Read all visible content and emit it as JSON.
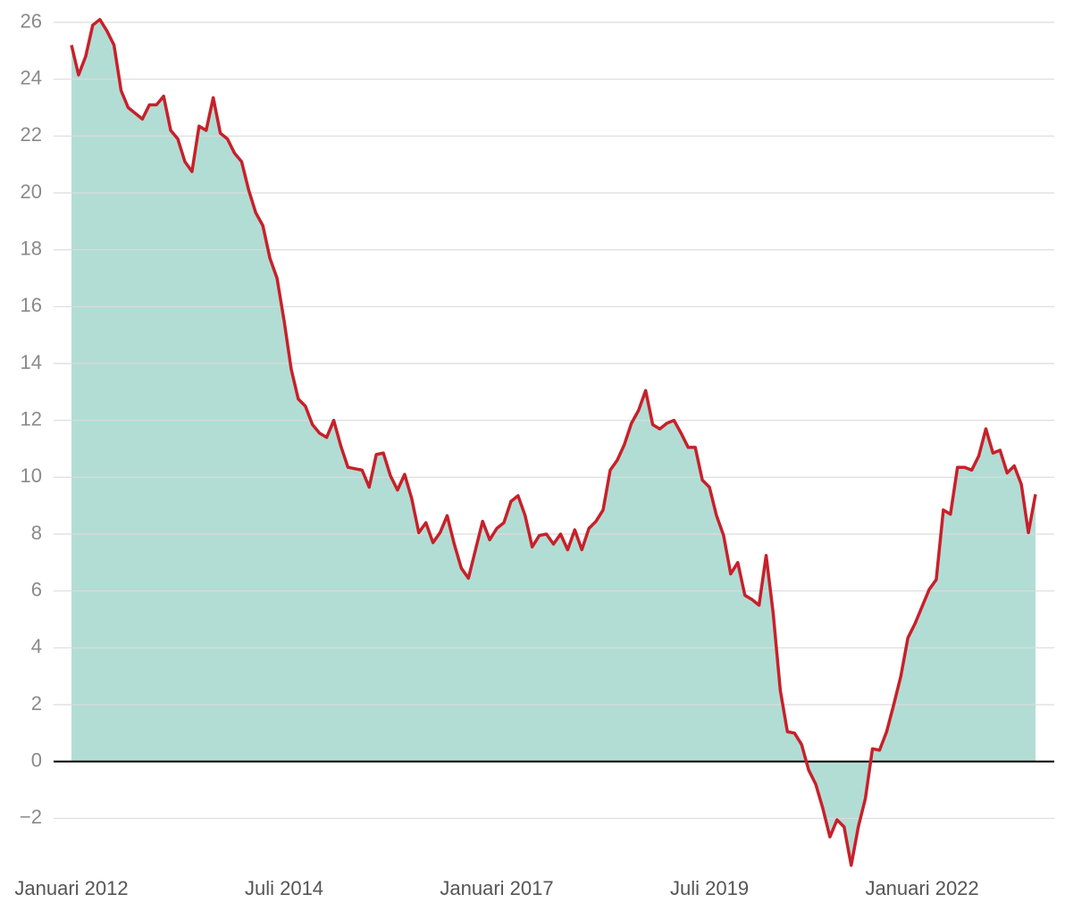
{
  "chart_data": {
    "type": "area",
    "categories": [
      "Januari 2012",
      null,
      null,
      null,
      null,
      null,
      null,
      null,
      null,
      null,
      null,
      null,
      null,
      null,
      null,
      null,
      null,
      null,
      null,
      null,
      null,
      null,
      null,
      null,
      null,
      null,
      null,
      null,
      null,
      null,
      "Juli 2014",
      null,
      null,
      null,
      null,
      null,
      null,
      null,
      null,
      null,
      null,
      null,
      null,
      null,
      null,
      null,
      null,
      null,
      null,
      null,
      null,
      null,
      null,
      null,
      null,
      null,
      null,
      null,
      null,
      null,
      "Januari 2017",
      null,
      null,
      null,
      null,
      null,
      null,
      null,
      null,
      null,
      null,
      null,
      null,
      null,
      null,
      null,
      null,
      null,
      null,
      null,
      null,
      null,
      null,
      null,
      null,
      null,
      null,
      null,
      null,
      null,
      "Juli 2019",
      null,
      null,
      null,
      null,
      null,
      null,
      null,
      null,
      null,
      null,
      null,
      null,
      null,
      null,
      null,
      null,
      null,
      null,
      null,
      null,
      null,
      null,
      null,
      null,
      null,
      null,
      null,
      null,
      null,
      "Januari 2022",
      null,
      null,
      null,
      null,
      null,
      null,
      null,
      null,
      null,
      null,
      null,
      null,
      null,
      null,
      null,
      null
    ],
    "values": [
      25.2,
      24.15,
      24.8,
      25.9,
      26.1,
      25.7,
      25.2,
      23.6,
      23.0,
      22.8,
      22.6,
      23.1,
      23.1,
      23.4,
      22.2,
      21.9,
      21.1,
      20.75,
      22.35,
      22.2,
      23.35,
      22.1,
      21.9,
      21.4,
      21.1,
      20.1,
      19.3,
      18.85,
      17.7,
      17.0,
      15.5,
      13.8,
      12.75,
      12.5,
      11.85,
      11.55,
      11.4,
      12.0,
      11.1,
      10.35,
      10.3,
      10.25,
      9.65,
      10.8,
      10.85,
      10.05,
      9.55,
      10.1,
      9.25,
      8.05,
      8.4,
      7.7,
      8.05,
      8.65,
      7.65,
      6.8,
      6.45,
      7.45,
      8.45,
      7.8,
      8.2,
      8.4,
      9.15,
      9.35,
      8.65,
      7.55,
      7.95,
      8.0,
      7.65,
      8.0,
      7.45,
      8.15,
      7.45,
      8.2,
      8.45,
      8.85,
      10.25,
      10.6,
      11.15,
      11.9,
      12.35,
      13.05,
      11.85,
      11.7,
      11.9,
      12.0,
      11.55,
      11.05,
      11.05,
      9.9,
      9.65,
      8.65,
      7.95,
      6.6,
      7.0,
      5.85,
      5.7,
      5.5,
      7.25,
      5.2,
      2.5,
      1.05,
      1.0,
      0.6,
      -0.3,
      -0.8,
      -1.65,
      -2.65,
      -2.05,
      -2.3,
      -3.65,
      -2.3,
      -1.3,
      0.45,
      0.4,
      1.05,
      2.0,
      3.0,
      4.35,
      4.85,
      5.45,
      6.05,
      6.4,
      8.85,
      8.7,
      10.35,
      10.35,
      10.25,
      10.75,
      11.7,
      10.85,
      10.95,
      10.15,
      10.4,
      9.75,
      8.05,
      9.4
    ],
    "color": "#c8202a",
    "fill_color": "#b2ddd4",
    "ylim": [
      -4,
      26
    ],
    "yticks": [
      {
        "value": -2,
        "label": "−2"
      },
      0,
      2,
      4,
      6,
      8,
      10,
      12,
      14,
      16,
      18,
      20,
      22,
      24,
      26
    ],
    "grid": true
  }
}
